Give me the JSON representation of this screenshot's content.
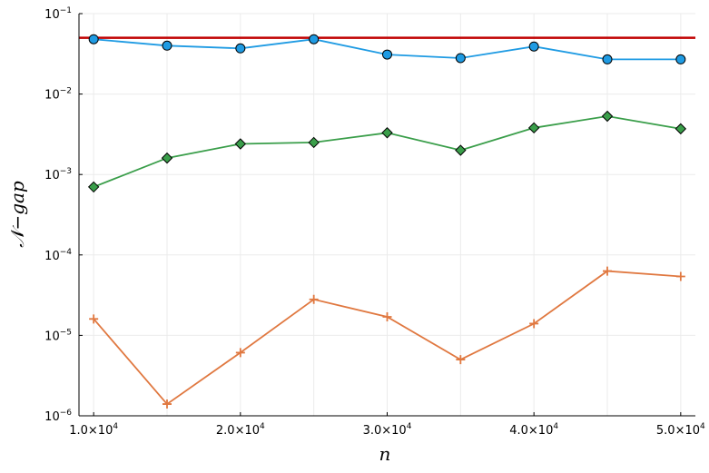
{
  "chart_data": {
    "type": "line",
    "xlabel": "n",
    "ylabel": "𝒩−gap",
    "yscale": "log",
    "xlim": [
      9000,
      51000
    ],
    "ylim": [
      1e-06,
      0.1
    ],
    "grid": true,
    "legend": "none",
    "x": [
      10000,
      15000,
      20000,
      25000,
      30000,
      35000,
      40000,
      45000,
      50000
    ],
    "x_tick_labels": [
      {
        "base": "1.0×10",
        "exp": "4",
        "value": 10000
      },
      {
        "base": "2.0×10",
        "exp": "4",
        "value": 20000
      },
      {
        "base": "3.0×10",
        "exp": "4",
        "value": 30000
      },
      {
        "base": "4.0×10",
        "exp": "4",
        "value": 40000
      },
      {
        "base": "5.0×10",
        "exp": "4",
        "value": 50000
      }
    ],
    "y_tick_labels": [
      {
        "base": "10",
        "exp": "−6",
        "value": 1e-06
      },
      {
        "base": "10",
        "exp": "−5",
        "value": 1e-05
      },
      {
        "base": "10",
        "exp": "−4",
        "value": 0.0001
      },
      {
        "base": "10",
        "exp": "−3",
        "value": 0.001
      },
      {
        "base": "10",
        "exp": "−2",
        "value": 0.01
      },
      {
        "base": "10",
        "exp": "−1",
        "value": 0.1
      }
    ],
    "reference_line": {
      "y": 0.05,
      "color": "#c00000"
    },
    "series": [
      {
        "color": "#1f9be3",
        "marker": "circle",
        "values": [
          0.048,
          0.04,
          0.037,
          0.048,
          0.031,
          0.028,
          0.039,
          0.027,
          0.027
        ]
      },
      {
        "color": "#3a9e4a",
        "marker": "diamond",
        "values": [
          0.0007,
          0.0016,
          0.0024,
          0.0025,
          0.0033,
          0.002,
          0.0038,
          0.0053,
          0.0037
        ]
      },
      {
        "color": "#e07840",
        "marker": "cross",
        "values": [
          1.6e-05,
          1.4e-06,
          6.1e-06,
          2.8e-05,
          1.7e-05,
          5e-06,
          1.4e-05,
          6.3e-05,
          5.4e-05
        ]
      }
    ]
  }
}
